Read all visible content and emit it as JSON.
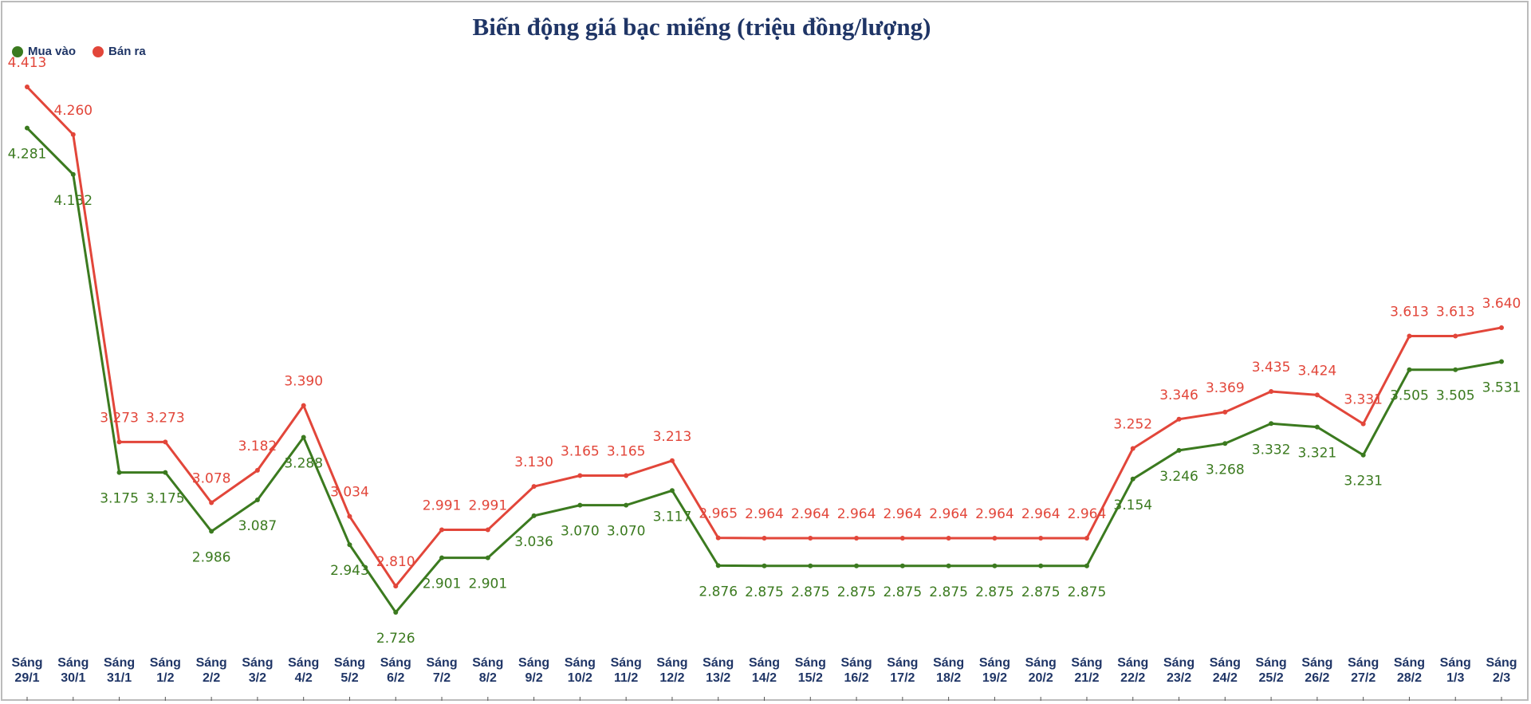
{
  "chart_data": {
    "type": "line",
    "title": "Biến động giá bạc miếng (triệu đồng/lượng)",
    "categories": [
      "Sáng 29/1",
      "Sáng 30/1",
      "Sáng 31/1",
      "Sáng 1/2",
      "Sáng 2/2",
      "Sáng 3/2",
      "Sáng 4/2",
      "Sáng 5/2",
      "Sáng 6/2",
      "Sáng 7/2",
      "Sáng 8/2",
      "Sáng 9/2",
      "Sáng 10/2",
      "Sáng 11/2",
      "Sáng 12/2",
      "Sáng 13/2",
      "Sáng 14/2",
      "Sáng 15/2",
      "Sáng 16/2",
      "Sáng 17/2",
      "Sáng 18/2",
      "Sáng 19/2",
      "Sáng 20/2",
      "Sáng 21/2",
      "Sáng 22/2",
      "Sáng 23/2",
      "Sáng 24/2",
      "Sáng 25/2",
      "Sáng 26/2",
      "Sáng 27/2",
      "Sáng 28/2",
      "Sáng 1/3",
      "Sáng 2/3"
    ],
    "series": [
      {
        "name": "Mua vào",
        "color": "#3b7a1f",
        "values": [
          4.281,
          4.132,
          3.175,
          3.175,
          2.986,
          3.087,
          3.288,
          2.943,
          2.726,
          2.901,
          2.901,
          3.036,
          3.07,
          3.07,
          3.117,
          2.876,
          2.875,
          2.875,
          2.875,
          2.875,
          2.875,
          2.875,
          2.875,
          2.875,
          3.154,
          3.246,
          3.268,
          3.332,
          3.321,
          3.231,
          3.505,
          3.505,
          3.531
        ],
        "value_labels": [
          "4.281",
          "4.132",
          "3.175",
          "3.175",
          "2.986",
          "3.087",
          "3.288",
          "2.943",
          "2.726",
          "2.901",
          "2.901",
          "3.036",
          "3.070",
          "3.070",
          "3.117",
          "2.876",
          "2.875",
          "2.875",
          "2.875",
          "2.875",
          "2.875",
          "2.875",
          "2.875",
          "2.875",
          "3.154",
          "3.246",
          "3.268",
          "3.332",
          "3.321",
          "3.231",
          "3.505",
          "3.505",
          "3.531"
        ]
      },
      {
        "name": "Bán ra",
        "color": "#e2463a",
        "values": [
          4.413,
          4.26,
          3.273,
          3.273,
          3.078,
          3.182,
          3.39,
          3.034,
          2.81,
          2.991,
          2.991,
          3.13,
          3.165,
          3.165,
          3.213,
          2.965,
          2.964,
          2.964,
          2.964,
          2.964,
          2.964,
          2.964,
          2.964,
          2.964,
          3.252,
          3.346,
          3.369,
          3.435,
          3.424,
          3.331,
          3.613,
          3.613,
          3.64
        ],
        "value_labels": [
          "4.413",
          "4.260",
          "3.273",
          "3.273",
          "3.078",
          "3.182",
          "3.390",
          "3.034",
          "2.810",
          "2.991",
          "2.991",
          "3.130",
          "3.165",
          "3.165",
          "3.213",
          "2.965",
          "2.964",
          "2.964",
          "2.964",
          "2.964",
          "2.964",
          "2.964",
          "2.964",
          "2.964",
          "3.252",
          "3.346",
          "3.369",
          "3.435",
          "3.424",
          "3.331",
          "3.613",
          "3.613",
          "3.640"
        ]
      }
    ]
  }
}
